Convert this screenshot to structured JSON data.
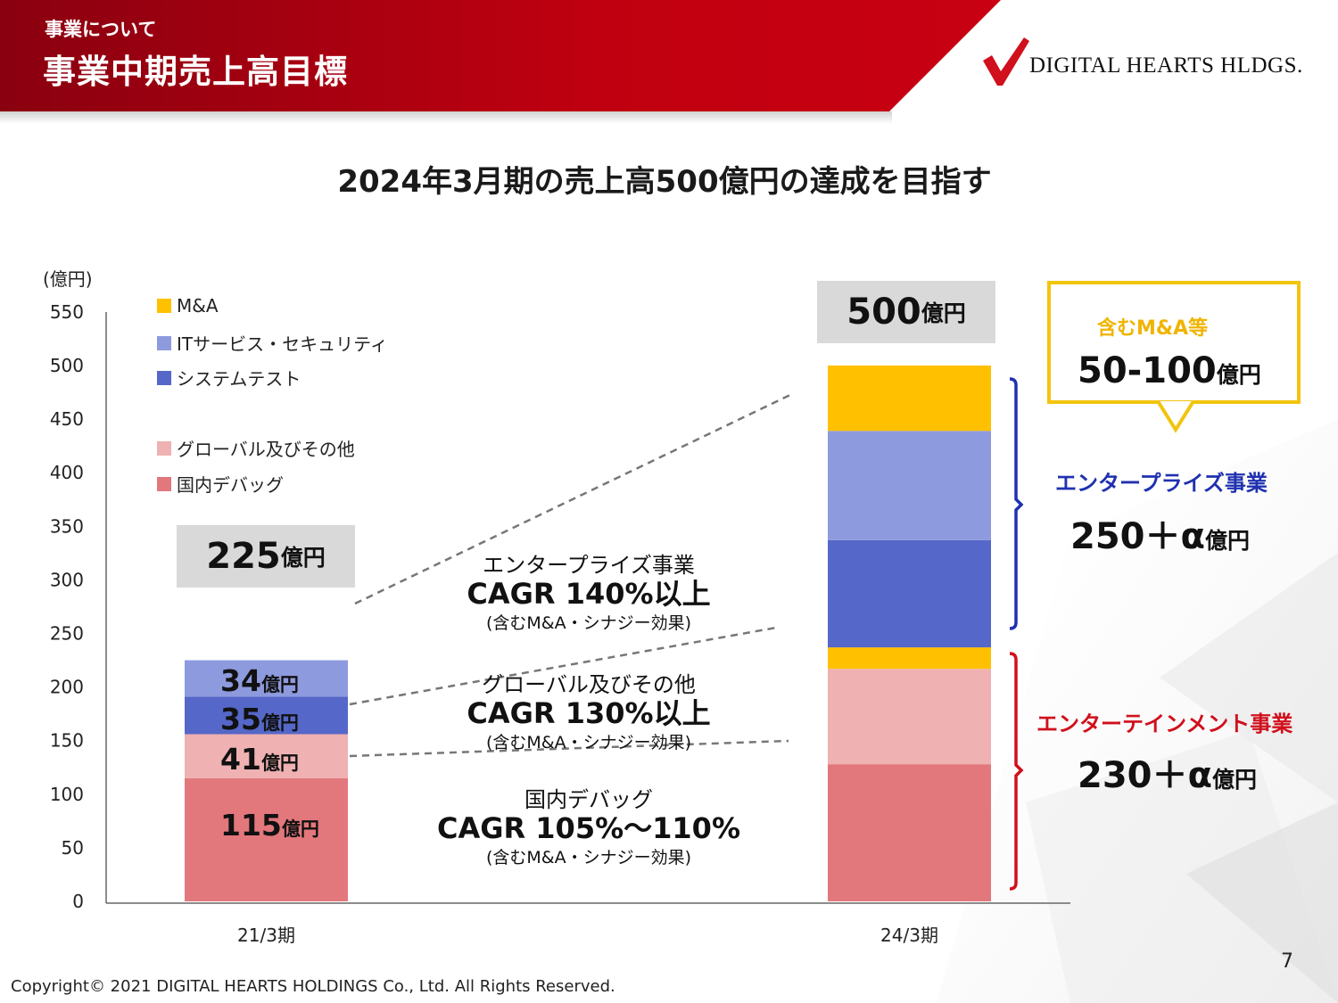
{
  "header": {
    "section": "事業について",
    "title": "事業中期売上高目標",
    "logo_text": "DIGITAL HEARTS HLDGS."
  },
  "headline": "2024年3月期の売上高500億円の達成を目指す",
  "chart_data": {
    "type": "bar",
    "stacked": true,
    "ylabel": "(億円)",
    "ylim": [
      0,
      550
    ],
    "yticks": [
      "550",
      "500",
      "450",
      "400",
      "350",
      "300",
      "250",
      "200",
      "150",
      "100",
      "50",
      "0"
    ],
    "categories": [
      "21/3期",
      "24/3期"
    ],
    "legend_order": [
      "M&A",
      "ITサービス・セキュリティ",
      "システムテスト",
      "グローバル及びその他",
      "国内デバッグ"
    ],
    "series": [
      {
        "name": "国内デバッグ",
        "color": "#e2777c",
        "values": [
          115,
          128
        ]
      },
      {
        "name": "グローバル及びその他",
        "color": "#efb1b2",
        "values": [
          41,
          89
        ]
      },
      {
        "name": "M&A",
        "color": "#ffc000",
        "values": [
          0,
          20
        ]
      },
      {
        "name": "システムテスト",
        "color": "#5567c8",
        "values": [
          35,
          100
        ]
      },
      {
        "name": "ITサービス・セキュリティ",
        "color": "#8e9ade",
        "values": [
          34,
          102
        ]
      },
      {
        "name": "M&A",
        "color": "#ffc000",
        "values": [
          0,
          61
        ]
      }
    ],
    "totals": [
      {
        "value": "225",
        "unit": "億円"
      },
      {
        "value": "500",
        "unit": "億円"
      }
    ],
    "segment_labels": [
      {
        "value": "34",
        "unit": "億円"
      },
      {
        "value": "35",
        "unit": "億円"
      },
      {
        "value": "41",
        "unit": "億円"
      },
      {
        "value": "115",
        "unit": "億円"
      }
    ],
    "cagr_annotations": [
      {
        "category": "エンタープライズ事業",
        "value": "CAGR 140%以上",
        "note": "(含むM&A・シナジー効果)"
      },
      {
        "category": "グローバル及びその他",
        "value": "CAGR 130%以上",
        "note": "(含むM&A・シナジー効果)"
      },
      {
        "category": "国内デバッグ",
        "value": "CAGR 105%～110%",
        "note": "(含むM&A・シナジー効果)"
      }
    ]
  },
  "callout": {
    "label": "含むM&A等",
    "value": "50-100",
    "unit": "億円",
    "color": "#f2c40f"
  },
  "segments": [
    {
      "title": "エンタープライズ事業",
      "value": "250＋α",
      "unit": "億円",
      "color": "#1f31b0"
    },
    {
      "title": "エンターテインメント事業",
      "value": "230＋α",
      "unit": "億円",
      "color": "#d0101c"
    }
  ],
  "footer": "Copyright© 2021 DIGITAL HEARTS HOLDINGS Co., Ltd. All Rights Reserved.",
  "page_number": "7",
  "colors": {
    "brand_red": "#c00010",
    "header_dark": "#8a0010"
  }
}
